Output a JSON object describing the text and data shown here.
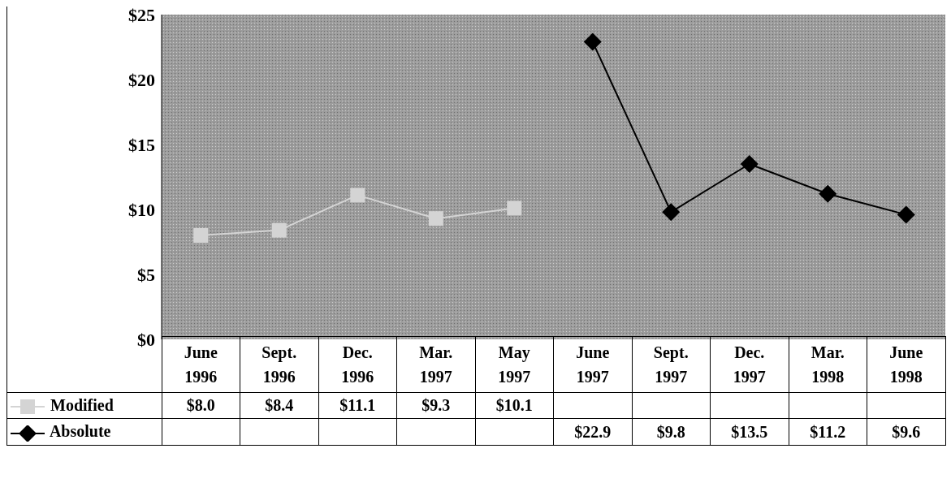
{
  "chart_data": {
    "type": "line",
    "categories": [
      "June 1996",
      "Sept. 1996",
      "Dec. 1996",
      "Mar. 1997",
      "May 1997",
      "June 1997",
      "Sept. 1997",
      "Dec. 1997",
      "Mar. 1998",
      "June 1998"
    ],
    "series": [
      {
        "name": "Modified",
        "color": "#d4d4d4",
        "marker": "square",
        "values": [
          8.0,
          8.4,
          11.1,
          9.3,
          10.1,
          null,
          null,
          null,
          null,
          null
        ],
        "value_labels": [
          "$8.0",
          "$8.4",
          "$11.1",
          "$9.3",
          "$10.1",
          null,
          null,
          null,
          null,
          null
        ]
      },
      {
        "name": "Absolute",
        "color": "#000000",
        "marker": "diamond",
        "values": [
          null,
          null,
          null,
          null,
          null,
          22.9,
          9.8,
          13.5,
          11.2,
          9.6
        ],
        "value_labels": [
          null,
          null,
          null,
          null,
          null,
          "$22.9",
          "$9.8",
          "$13.5",
          "$11.2",
          "$9.6"
        ]
      }
    ],
    "ylim": [
      0,
      25
    ],
    "yticks": [
      {
        "value": 0,
        "label": "$0"
      },
      {
        "value": 5,
        "label": "$5"
      },
      {
        "value": 10,
        "label": "$10"
      },
      {
        "value": 15,
        "label": "$15"
      },
      {
        "value": 20,
        "label": "$20"
      },
      {
        "value": 25,
        "label": "$25"
      }
    ],
    "grid": false,
    "legend": "bottom left",
    "line_style": "solid"
  }
}
